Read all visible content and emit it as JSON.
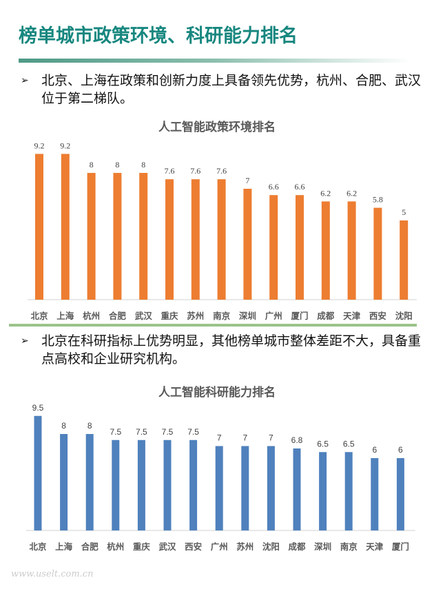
{
  "title": "榜单城市政策环境、科研能力排名",
  "bullets": [
    "北京、上海在政策和创新力度上具备领先优势，杭州、合肥、武汉位于第二梯队。",
    "北京在科研指标上优势明显，其他榜单城市整体差距不大，具备重点高校和企业研究机构。"
  ],
  "bullet_icon": "arrow-bullet-icon",
  "watermark": "www.uselt.com.cn",
  "chart_data": [
    {
      "type": "bar",
      "title": "人工智能政策环境排名",
      "color": "#ed7d31",
      "categories": [
        "北京",
        "上海",
        "杭州",
        "合肥",
        "武汉",
        "重庆",
        "苏州",
        "南京",
        "深圳",
        "广州",
        "厦门",
        "成都",
        "天津",
        "西安",
        "沈阳"
      ],
      "values": [
        9.2,
        9.2,
        8,
        8,
        8,
        7.6,
        7.6,
        7.6,
        7,
        6.6,
        6.6,
        6.2,
        6.2,
        5.8,
        5
      ],
      "data_labels": [
        "9.2",
        "9.2",
        "8",
        "8",
        "8",
        "7.6",
        "7.6",
        "7.6",
        "7",
        "6.6",
        "6.6",
        "6.2",
        "6.2",
        "5.8",
        "5"
      ],
      "ylim": [
        0,
        10
      ],
      "grid": false
    },
    {
      "type": "bar",
      "title": "人工智能科研能力排名",
      "color": "#4f81bd",
      "categories": [
        "北京",
        "上海",
        "合肥",
        "杭州",
        "重庆",
        "武汉",
        "西安",
        "广州",
        "苏州",
        "沈阳",
        "成都",
        "深圳",
        "南京",
        "天津",
        "厦门"
      ],
      "values": [
        9.5,
        8,
        8,
        7.5,
        7.5,
        7.5,
        7.5,
        7,
        7,
        7,
        6.8,
        6.5,
        6.5,
        6,
        6
      ],
      "data_labels": [
        "9.5",
        "8",
        "8",
        "7.5",
        "7.5",
        "7.5",
        "7.5",
        "7",
        "7",
        "7",
        "6.8",
        "6.5",
        "6.5",
        "6",
        "6"
      ],
      "ylim": [
        0,
        10
      ],
      "grid": false
    }
  ]
}
